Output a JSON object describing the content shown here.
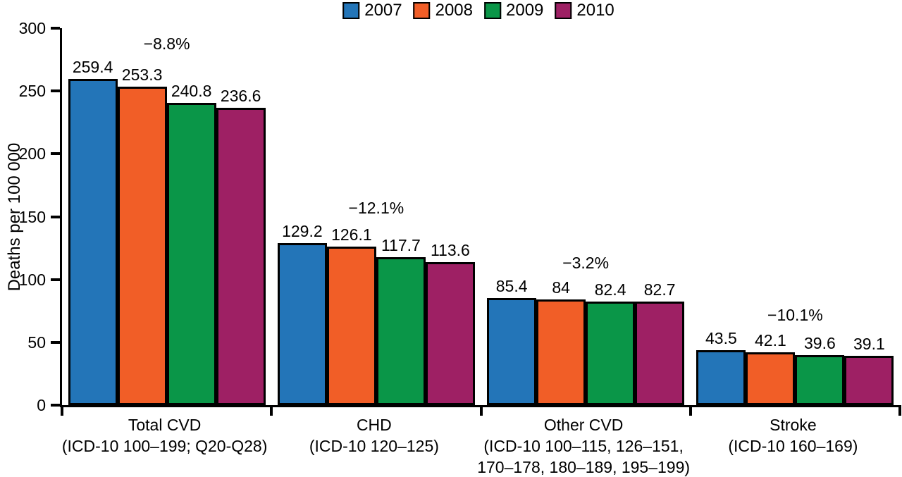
{
  "chart_data": {
    "type": "bar",
    "title": "",
    "ylabel": "Deaths per 100 000",
    "xlabel": "",
    "ylim": [
      0,
      300
    ],
    "yticks": [
      0,
      50,
      100,
      150,
      200,
      250,
      300
    ],
    "grid": false,
    "legend_position": "top",
    "categories": [
      {
        "name": "Total CVD",
        "code_lines": [
          "(ICD-10 100–199; Q20-Q28)"
        ],
        "pct_change": "−8.8%"
      },
      {
        "name": "CHD",
        "code_lines": [
          "(ICD-10 120–125)"
        ],
        "pct_change": "−12.1%"
      },
      {
        "name": "Other CVD",
        "code_lines": [
          "(ICD-10 100–115, 126–151,",
          "170–178, 180–189, 195–199)"
        ],
        "pct_change": "−3.2%"
      },
      {
        "name": "Stroke",
        "code_lines": [
          "(ICD-10 160–169)"
        ],
        "pct_change": "−10.1%"
      }
    ],
    "series": [
      {
        "name": "2007",
        "color": "#2375b8",
        "values": [
          259.4,
          129.2,
          85.4,
          43.5
        ]
      },
      {
        "name": "2008",
        "color": "#f15e27",
        "values": [
          253.3,
          126.1,
          84,
          42.1
        ]
      },
      {
        "name": "2009",
        "color": "#0a9648",
        "values": [
          240.8,
          117.7,
          82.4,
          39.6
        ]
      },
      {
        "name": "2010",
        "color": "#9e2064",
        "values": [
          236.6,
          113.6,
          82.7,
          39.1
        ]
      }
    ]
  }
}
